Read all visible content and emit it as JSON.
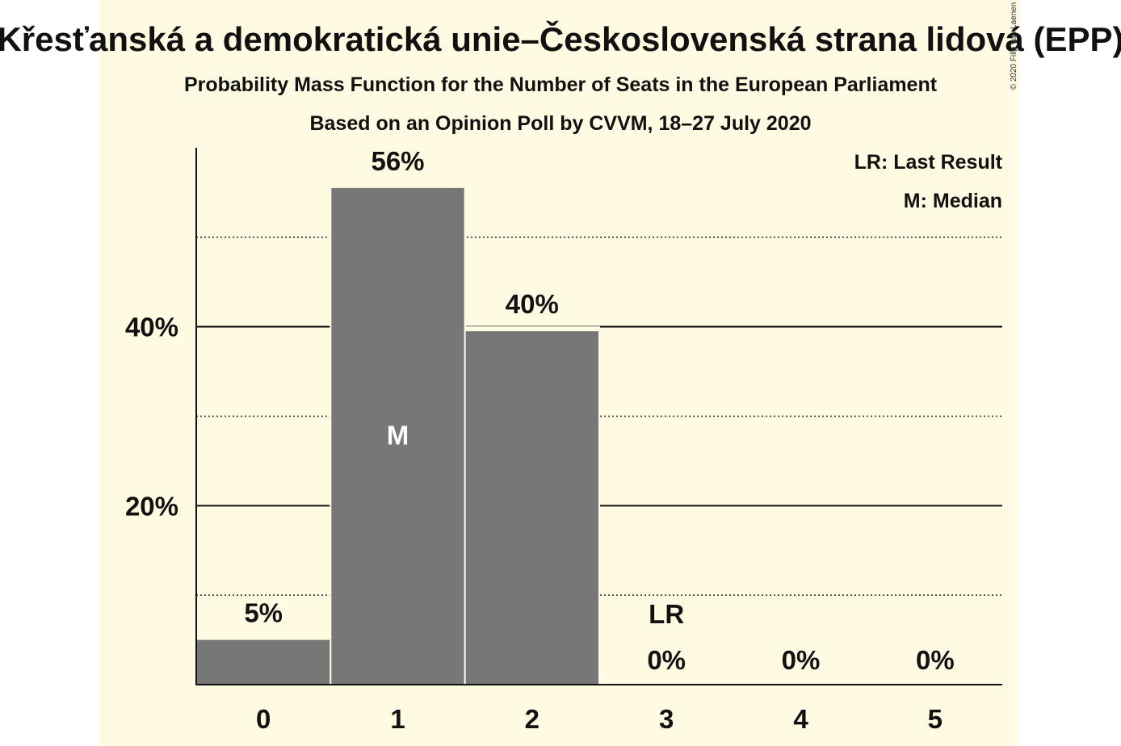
{
  "chart_data": {
    "type": "bar",
    "title": "Křesťanská a demokratická unie–Československá strana lidová (EPP)",
    "subtitle_lines": [
      "Probability Mass Function for the Number of Seats in the European Parliament",
      "Based on an Opinion Poll by CVVM, 18–27 July 2020"
    ],
    "copyright": "© 2020 Filip van Laenen",
    "categories": [
      "0",
      "1",
      "2",
      "3",
      "4",
      "5"
    ],
    "values": [
      5,
      55.5,
      39.5,
      0,
      0,
      0
    ],
    "data_labels": [
      "5%",
      "56%",
      "40%",
      "0%",
      "0%",
      "0%"
    ],
    "median_index": 1,
    "median_marker": "M",
    "last_result_index": 3,
    "last_result_marker": "LR",
    "legend": [
      "LR: Last Result",
      "M: Median"
    ],
    "legend_position": "top-right",
    "ylim": [
      0,
      60
    ],
    "ytick_values": [
      20,
      40
    ],
    "ytick_labels": [
      "20%",
      "40%"
    ],
    "minor_grid_values": [
      10,
      30,
      50
    ],
    "grid": true,
    "colors": {
      "background": "#fffae2",
      "bar": "#777777",
      "axis": "#111111",
      "median_text": "#ffffff"
    }
  }
}
